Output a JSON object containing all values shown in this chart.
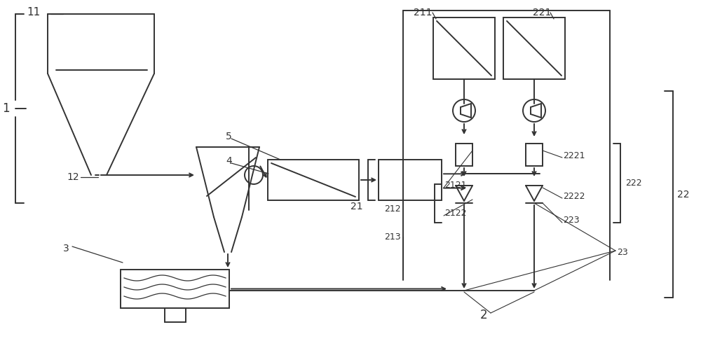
{
  "bg_color": "#ffffff",
  "lc": "#333333",
  "lw": 1.4,
  "figsize": [
    10.0,
    4.87
  ],
  "dpi": 100
}
